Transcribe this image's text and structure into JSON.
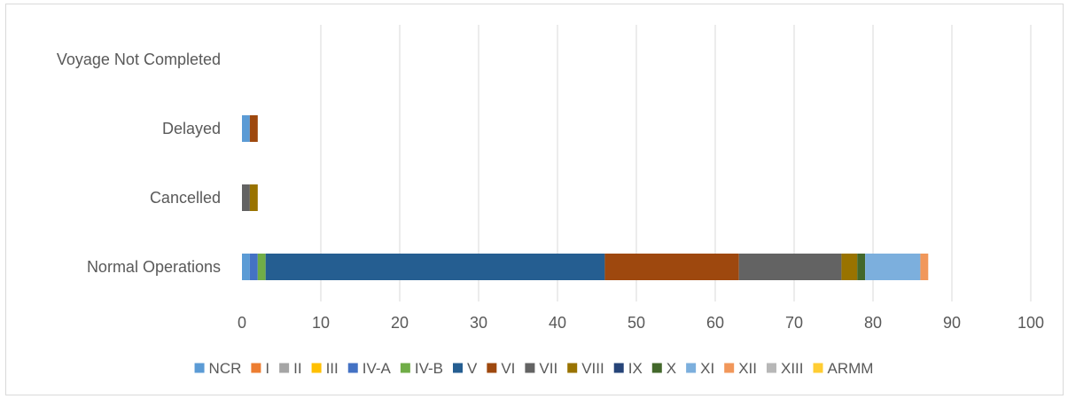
{
  "chart_data": {
    "type": "bar",
    "orientation": "horizontal",
    "stacked": true,
    "title": "",
    "xlabel": "",
    "ylabel": "",
    "xlim": [
      0,
      100
    ],
    "xticks": [
      0,
      10,
      20,
      30,
      40,
      50,
      60,
      70,
      80,
      90,
      100
    ],
    "xtick_labels": [
      "0",
      "10",
      "20",
      "30",
      "40",
      "50",
      "60",
      "70",
      "80",
      "90",
      "100"
    ],
    "grid": "vertical",
    "legend_position": "bottom",
    "categories": [
      "Normal Operations",
      "Cancelled",
      "Delayed",
      "Voyage Not Completed"
    ],
    "series": [
      {
        "name": "NCR",
        "color": "#5B9BD5",
        "values": [
          1,
          0,
          1,
          0
        ]
      },
      {
        "name": "I",
        "color": "#ED7D31",
        "values": [
          0,
          0,
          0,
          0
        ]
      },
      {
        "name": "II",
        "color": "#A5A5A5",
        "values": [
          0,
          0,
          0,
          0
        ]
      },
      {
        "name": "III",
        "color": "#FFC000",
        "values": [
          0,
          0,
          0,
          0
        ]
      },
      {
        "name": "IV-A",
        "color": "#4472C4",
        "values": [
          1,
          0,
          0,
          0
        ]
      },
      {
        "name": "IV-B",
        "color": "#70AD47",
        "values": [
          1,
          0,
          0,
          0
        ]
      },
      {
        "name": "V",
        "color": "#255E91",
        "values": [
          43,
          0,
          0,
          0
        ]
      },
      {
        "name": "VI",
        "color": "#9E480E",
        "values": [
          17,
          0,
          1,
          0
        ]
      },
      {
        "name": "VII",
        "color": "#636363",
        "values": [
          13,
          1,
          0,
          0
        ]
      },
      {
        "name": "VIII",
        "color": "#997300",
        "values": [
          2,
          1,
          0,
          0
        ]
      },
      {
        "name": "IX",
        "color": "#264478",
        "values": [
          0,
          0,
          0,
          0
        ]
      },
      {
        "name": "X",
        "color": "#43682B",
        "values": [
          1,
          0,
          0,
          0
        ]
      },
      {
        "name": "XI",
        "color": "#7CAFDD",
        "values": [
          7,
          0,
          0,
          0
        ]
      },
      {
        "name": "XII",
        "color": "#F1975A",
        "values": [
          1,
          0,
          0,
          0
        ]
      },
      {
        "name": "XIII",
        "color": "#B7B7B7",
        "values": [
          0,
          0,
          0,
          0
        ]
      },
      {
        "name": "ARMM",
        "color": "#FFCD33",
        "values": [
          0,
          0,
          0,
          0
        ]
      }
    ]
  }
}
